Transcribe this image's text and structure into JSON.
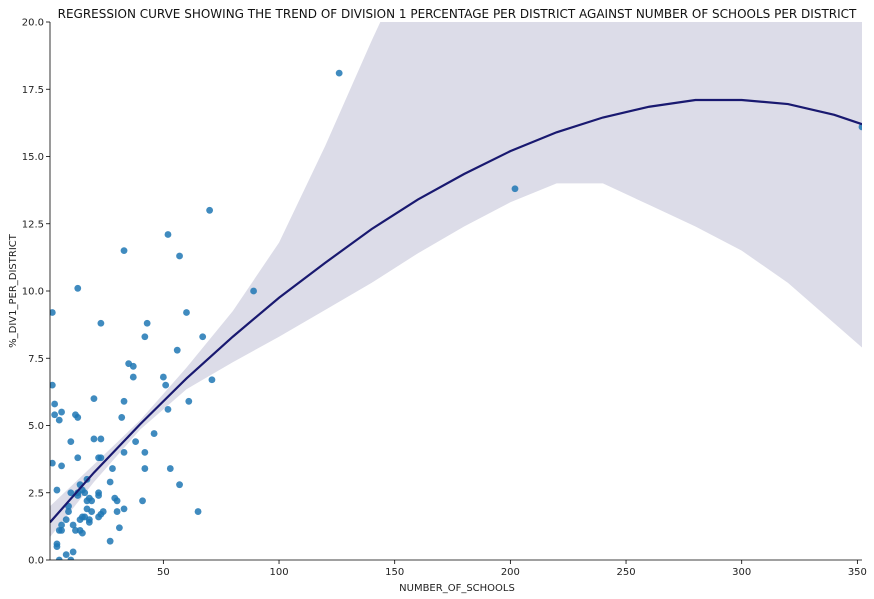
{
  "chart_data": {
    "type": "scatter",
    "title": "REGRESSION CURVE SHOWING THE TREND OF DIVISION 1 PERCENTAGE PER DISTRICT AGAINST NUMBER OF SCHOOLS PER DISTRICT",
    "xlabel": "NUMBER_OF_SCHOOLS",
    "ylabel": "%_DIV1_PER_DISTRICT",
    "xlim": [
      1,
      352
    ],
    "ylim": [
      0,
      20
    ],
    "xticks": [
      50,
      100,
      150,
      200,
      250,
      300,
      350
    ],
    "yticks": [
      0.0,
      2.5,
      5.0,
      7.5,
      10.0,
      12.5,
      15.0,
      17.5,
      20.0
    ],
    "ytick_labels": [
      "0.0",
      "2.5",
      "5.0",
      "7.5",
      "10.0",
      "12.5",
      "15.0",
      "17.5",
      "20.0"
    ],
    "grid": false,
    "colors": {
      "points": "#1f77b4",
      "line": "#191970",
      "band": "#dcdce8"
    },
    "points": [
      [
        2,
        9.2
      ],
      [
        2,
        6.5
      ],
      [
        2,
        3.6
      ],
      [
        3,
        5.8
      ],
      [
        3,
        5.4
      ],
      [
        4,
        2.6
      ],
      [
        4,
        0.6
      ],
      [
        4,
        0.5
      ],
      [
        5,
        5.2
      ],
      [
        5,
        1.1
      ],
      [
        5,
        0.0
      ],
      [
        6,
        5.5
      ],
      [
        6,
        3.5
      ],
      [
        6,
        1.3
      ],
      [
        6,
        1.1
      ],
      [
        8,
        0.2
      ],
      [
        8,
        1.5
      ],
      [
        9,
        2.0
      ],
      [
        9,
        1.8
      ],
      [
        10,
        4.4
      ],
      [
        10,
        2.5
      ],
      [
        10,
        0.0
      ],
      [
        11,
        1.3
      ],
      [
        11,
        0.3
      ],
      [
        12,
        5.4
      ],
      [
        12,
        1.1
      ],
      [
        13,
        10.1
      ],
      [
        13,
        5.3
      ],
      [
        13,
        3.8
      ],
      [
        13,
        2.5
      ],
      [
        13,
        2.4
      ],
      [
        14,
        2.8
      ],
      [
        14,
        1.5
      ],
      [
        14,
        1.1
      ],
      [
        15,
        2.6
      ],
      [
        15,
        1.6
      ],
      [
        15,
        1.0
      ],
      [
        16,
        2.5
      ],
      [
        16,
        1.6
      ],
      [
        17,
        3.0
      ],
      [
        17,
        2.2
      ],
      [
        17,
        1.9
      ],
      [
        18,
        2.3
      ],
      [
        18,
        1.5
      ],
      [
        18,
        1.4
      ],
      [
        19,
        1.8
      ],
      [
        19,
        2.2
      ],
      [
        20,
        6.0
      ],
      [
        20,
        4.5
      ],
      [
        22,
        3.8
      ],
      [
        22,
        2.5
      ],
      [
        22,
        2.4
      ],
      [
        22,
        1.6
      ],
      [
        23,
        8.8
      ],
      [
        23,
        4.5
      ],
      [
        23,
        3.8
      ],
      [
        23,
        1.7
      ],
      [
        24,
        1.8
      ],
      [
        27,
        2.9
      ],
      [
        27,
        0.7
      ],
      [
        28,
        3.4
      ],
      [
        29,
        2.3
      ],
      [
        30,
        2.2
      ],
      [
        30,
        1.8
      ],
      [
        31,
        1.2
      ],
      [
        32,
        5.3
      ],
      [
        33,
        11.5
      ],
      [
        33,
        5.9
      ],
      [
        33,
        4.0
      ],
      [
        33,
        1.9
      ],
      [
        35,
        7.3
      ],
      [
        37,
        7.2
      ],
      [
        37,
        6.8
      ],
      [
        38,
        4.4
      ],
      [
        41,
        2.2
      ],
      [
        42,
        8.3
      ],
      [
        42,
        4.0
      ],
      [
        42,
        3.4
      ],
      [
        43,
        8.8
      ],
      [
        46,
        4.7
      ],
      [
        50,
        6.8
      ],
      [
        51,
        6.5
      ],
      [
        52,
        12.1
      ],
      [
        52,
        5.6
      ],
      [
        53,
        3.4
      ],
      [
        56,
        7.8
      ],
      [
        57,
        11.3
      ],
      [
        57,
        2.8
      ],
      [
        60,
        9.2
      ],
      [
        61,
        5.9
      ],
      [
        65,
        1.8
      ],
      [
        67,
        8.3
      ],
      [
        70,
        13.0
      ],
      [
        71,
        6.7
      ],
      [
        89,
        10.0
      ],
      [
        126,
        18.1
      ],
      [
        202,
        13.8
      ],
      [
        352,
        16.1
      ]
    ],
    "regression_order": 2,
    "regression_x": [
      1,
      20,
      40,
      60,
      80,
      100,
      120,
      140,
      160,
      180,
      200,
      220,
      240,
      260,
      280,
      300,
      320,
      340,
      352
    ],
    "regression_y": [
      1.4,
      3.25,
      5.05,
      6.75,
      8.3,
      9.75,
      11.05,
      12.3,
      13.4,
      14.35,
      15.2,
      15.9,
      16.45,
      16.85,
      17.1,
      17.1,
      16.95,
      16.55,
      16.2
    ],
    "ci_upper": [
      2.0,
      3.55,
      5.2,
      7.15,
      9.25,
      11.8,
      15.4,
      19.3,
      23.0,
      26.2,
      28.5,
      29.5,
      29.8,
      29.5,
      28.8,
      27.5,
      25.5,
      22.5,
      21.0
    ],
    "ci_lower": [
      0.85,
      2.9,
      4.85,
      6.35,
      7.35,
      8.3,
      9.3,
      10.3,
      11.4,
      12.4,
      13.3,
      14.0,
      14.0,
      13.2,
      12.4,
      11.5,
      10.3,
      8.8,
      7.9
    ]
  }
}
